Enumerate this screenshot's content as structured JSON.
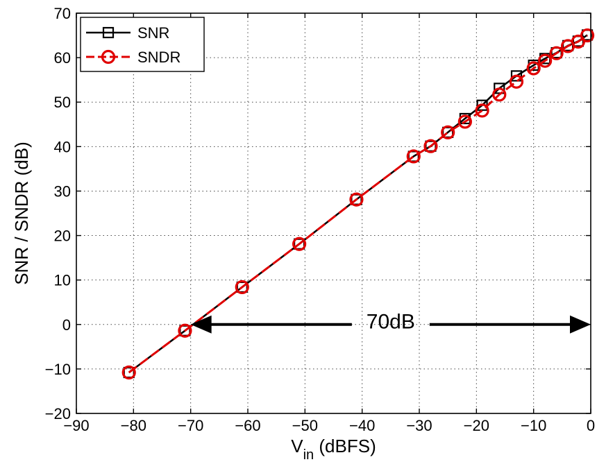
{
  "chart_data": {
    "type": "line",
    "xlabel_main": "V",
    "xlabel_sub": "in",
    "xlabel_rest": " (dBFS)",
    "ylabel": "SNR / SNDR (dB)",
    "xlim": [
      -90,
      0
    ],
    "ylim": [
      -20,
      70
    ],
    "xticks": [
      -90,
      -80,
      -70,
      -60,
      -50,
      -40,
      -30,
      -20,
      -10,
      0
    ],
    "yticks": [
      -20,
      -10,
      0,
      10,
      20,
      30,
      40,
      50,
      60,
      70
    ],
    "xtick_labels": [
      "−90",
      "−80",
      "−70",
      "−60",
      "−50",
      "−40",
      "−30",
      "−20",
      "−10",
      "0"
    ],
    "ytick_labels": [
      "−20",
      "−10",
      "0",
      "10",
      "20",
      "30",
      "40",
      "50",
      "60",
      "70"
    ],
    "grid": true,
    "legend_position": "top-left",
    "series": [
      {
        "name": "SNR",
        "color": "#000000",
        "marker": "square",
        "line_style": "solid",
        "x": [
          -80.8,
          -71.0,
          -61.0,
          -51.0,
          -41.0,
          -31.0,
          -28.0,
          -25.0,
          -22.0,
          -19.0,
          -16.0,
          -13.0,
          -10.0,
          -8.0,
          -6.0,
          -4.0,
          -2.2,
          -0.6
        ],
        "y": [
          -10.8,
          -1.4,
          8.4,
          18.1,
          28.1,
          37.8,
          40.1,
          43.2,
          46.3,
          49.3,
          53.1,
          55.9,
          58.3,
          59.8,
          61.1,
          62.7,
          63.7,
          65.1
        ]
      },
      {
        "name": "SNDR",
        "color": "#e00000",
        "marker": "circle",
        "line_style": "dashed",
        "x": [
          -80.8,
          -71.0,
          -61.0,
          -51.0,
          -41.0,
          -31.0,
          -28.0,
          -25.0,
          -22.0,
          -19.0,
          -16.0,
          -13.0,
          -10.0,
          -8.0,
          -6.0,
          -4.0,
          -2.2,
          -0.6
        ],
        "y": [
          -10.8,
          -1.4,
          8.4,
          18.1,
          28.1,
          37.8,
          40.1,
          43.2,
          45.6,
          48.1,
          51.7,
          54.6,
          57.6,
          59.3,
          61.0,
          62.6,
          63.6,
          65.0
        ]
      }
    ],
    "annotation": {
      "text": "70dB",
      "x_start": -70,
      "x_end": 0,
      "y": 0
    }
  }
}
